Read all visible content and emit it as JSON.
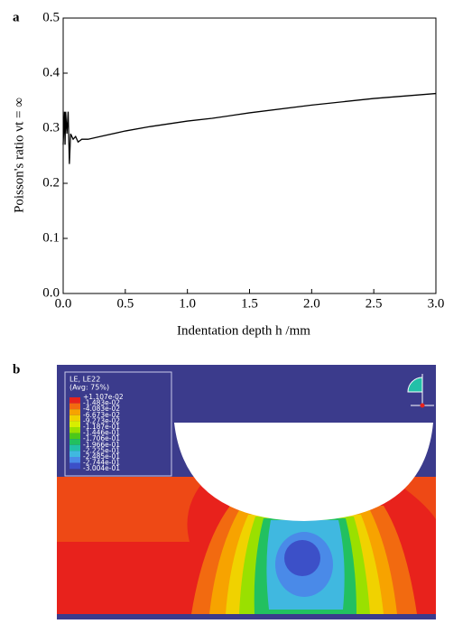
{
  "panels": [
    "a",
    "b"
  ],
  "chart_data": {
    "type": "line",
    "xlabel": "Indentation depth h /mm",
    "ylabel": "Poisson's ratio νt = ∞",
    "x": [
      0,
      0.01,
      0.015,
      0.02,
      0.03,
      0.04,
      0.05,
      0.06,
      0.08,
      0.1,
      0.12,
      0.15,
      0.2,
      0.3,
      0.5,
      0.7,
      1.0,
      1.2,
      1.5,
      2.0,
      2.5,
      3.0
    ],
    "values": [
      0.27,
      0.33,
      0.27,
      0.33,
      0.29,
      0.33,
      0.235,
      0.29,
      0.28,
      0.285,
      0.275,
      0.28,
      0.28,
      0.285,
      0.295,
      0.303,
      0.313,
      0.318,
      0.328,
      0.342,
      0.354,
      0.363
    ],
    "color": "#000000",
    "xlim": [
      0,
      3
    ],
    "ylim": [
      0,
      0.5
    ],
    "xticks": [
      {
        "value": 0,
        "label": "0.0"
      },
      0.5,
      {
        "value": 1,
        "label": "1.0"
      },
      1.5,
      {
        "value": 2,
        "label": "2.0"
      },
      2.5,
      {
        "value": 3,
        "label": "3.0"
      }
    ],
    "yticks": [
      {
        "value": 0,
        "label": "0.0"
      },
      0.1,
      0.2,
      0.3,
      0.4,
      0.5
    ]
  },
  "contour": {
    "legend_title": [
      "LE, LE22",
      "(Avg: 75%)"
    ],
    "legend_values": [
      "+1.107e-02",
      "-1.483e-02",
      "-4.083e-02",
      "-6.673e-02",
      "-9.273e-02",
      "-1.187e-01",
      "-1.446e-01",
      "-1.706e-01",
      "-1.966e-01",
      "-2.225e-01",
      "-2.485e-01",
      "-2.744e-01",
      "-3.004e-01"
    ],
    "legend_colors": [
      "#e8221c",
      "#f26a10",
      "#f7a300",
      "#f0d200",
      "#d8ee00",
      "#9ae000",
      "#4cc81a",
      "#22c060",
      "#22c0a8",
      "#40b8e0",
      "#4a8ae8",
      "#3c50c8"
    ]
  }
}
